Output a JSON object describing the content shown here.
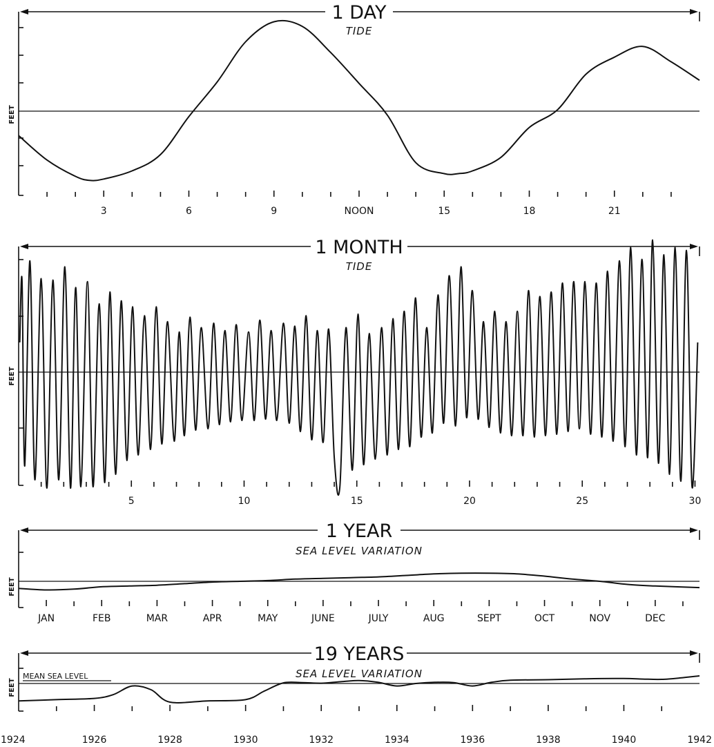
{
  "chart_data": [
    {
      "type": "line",
      "title": "1 DAY",
      "subtitle": "TIDE",
      "ylabel": "FEET",
      "xlim": [
        0,
        24
      ],
      "ylim": [
        -3,
        3
      ],
      "xtick_labels": [
        {
          "x": 3,
          "label": "3"
        },
        {
          "x": 6,
          "label": "6"
        },
        {
          "x": 9,
          "label": "9"
        },
        {
          "x": 12,
          "label": "NOON"
        },
        {
          "x": 15,
          "label": "15"
        },
        {
          "x": 18,
          "label": "18"
        },
        {
          "x": 21,
          "label": "21"
        }
      ],
      "series": [
        {
          "x": [
            0,
            1,
            2,
            2.5,
            3,
            4,
            5,
            6,
            7,
            8,
            9,
            10,
            11,
            12,
            13,
            14,
            15,
            15.5,
            16,
            17,
            18,
            19,
            20,
            21,
            22,
            23,
            24
          ],
          "values": [
            -0.9,
            -1.8,
            -2.4,
            -2.55,
            -2.5,
            -2.2,
            -1.6,
            -0.2,
            0.95,
            2.25,
            2.9,
            2.75,
            1.9,
            0.9,
            -0.15,
            -1.9,
            -2.3,
            -2.3,
            -2.2,
            -1.7,
            -0.6,
            0.05,
            1.2,
            1.75,
            2.1,
            1.6,
            1.0
          ]
        }
      ]
    },
    {
      "type": "line",
      "title": "1 MONTH",
      "subtitle": "TIDE",
      "ylabel": "FEET",
      "xlim": [
        0,
        30.2
      ],
      "ylim": [
        -4,
        4
      ],
      "xtick_labels": [
        {
          "x": 5,
          "label": "5"
        },
        {
          "x": 10,
          "label": "10"
        },
        {
          "x": 15,
          "label": "15"
        },
        {
          "x": 20,
          "label": "20"
        },
        {
          "x": 25,
          "label": "25"
        },
        {
          "x": 30,
          "label": "30"
        }
      ],
      "series": [
        {
          "x": [
            0.05,
            0.15,
            0.27,
            0.5,
            0.72,
            1.0,
            1.25,
            1.52,
            1.78,
            2.05,
            2.3,
            2.53,
            2.76,
            3.05,
            3.3,
            3.57,
            3.82,
            4.05,
            4.3,
            4.55,
            4.8,
            5.05,
            5.3,
            5.58,
            5.85,
            6.1,
            6.35,
            6.6,
            6.9,
            7.12,
            7.35,
            7.6,
            7.85,
            8.1,
            8.4,
            8.65,
            8.9,
            9.15,
            9.4,
            9.65,
            9.9,
            10.2,
            10.45,
            10.7,
            10.95,
            11.2,
            11.45,
            11.75,
            12.0,
            12.25,
            12.5,
            12.75,
            13.0,
            13.25,
            13.5,
            13.75,
            14.0,
            14.25,
            14.52,
            14.8,
            15.05,
            15.3,
            15.55,
            15.82,
            16.1,
            16.35,
            16.6,
            16.85,
            17.1,
            17.35,
            17.6,
            17.85,
            18.1,
            18.35,
            18.6,
            18.85,
            19.1,
            19.38,
            19.62,
            19.87,
            20.12,
            20.38,
            20.62,
            20.87,
            21.12,
            21.37,
            21.62,
            21.87,
            22.12,
            22.37,
            22.62,
            22.87,
            23.12,
            23.37,
            23.62,
            23.87,
            24.12,
            24.37,
            24.62,
            24.87,
            25.12,
            25.37,
            25.62,
            25.87,
            26.12,
            26.37,
            26.65,
            26.9,
            27.15,
            27.4,
            27.65,
            27.9,
            28.12,
            28.38,
            28.62,
            28.87,
            29.12,
            29.37,
            29.62,
            29.87,
            30.12
          ],
          "values": [
            1.0,
            3.1,
            -3.4,
            3.75,
            -3.9,
            3.15,
            -4.2,
            3.1,
            -3.9,
            3.55,
            -4.2,
            2.85,
            -4.15,
            3.05,
            -4.15,
            2.3,
            -4.0,
            2.7,
            -3.7,
            2.4,
            -3.2,
            2.2,
            -3.0,
            1.9,
            -2.8,
            2.2,
            -2.6,
            1.7,
            -2.5,
            1.35,
            -2.3,
            1.85,
            -2.1,
            1.5,
            -2.05,
            1.65,
            -1.9,
            1.4,
            -1.8,
            1.6,
            -1.75,
            1.35,
            -1.75,
            1.75,
            -1.7,
            1.4,
            -1.75,
            1.65,
            -1.85,
            1.55,
            -2.15,
            1.9,
            -2.45,
            1.4,
            -2.55,
            1.45,
            -3.1,
            -4.15,
            1.5,
            -3.55,
            1.95,
            -3.35,
            1.3,
            -3.15,
            1.5,
            -3.0,
            1.8,
            -2.8,
            2.05,
            -2.7,
            2.5,
            -2.35,
            1.5,
            -2.2,
            2.6,
            -1.85,
            3.25,
            -1.95,
            3.55,
            -1.65,
            2.75,
            -1.7,
            1.7,
            -2.0,
            2.05,
            -2.2,
            1.7,
            -2.3,
            2.05,
            -2.3,
            2.75,
            -2.35,
            2.55,
            -2.3,
            2.7,
            -2.25,
            3.0,
            -2.15,
            3.05,
            -2.05,
            3.05,
            -2.25,
            3.0,
            -2.35,
            3.4,
            -2.5,
            3.75,
            -2.7,
            4.2,
            -3.0,
            3.8,
            -3.1,
            4.45,
            -3.3,
            3.95,
            -3.7,
            4.2,
            -3.95,
            4.1,
            -4.15,
            1.0
          ]
        }
      ]
    },
    {
      "type": "line",
      "title": "1 YEAR",
      "subtitle": "SEA LEVEL VARIATION",
      "ylabel": "FEET",
      "xlim": [
        0,
        12.3
      ],
      "ylim": [
        -1.5,
        3
      ],
      "xtick_labels": [
        {
          "x": 0.5,
          "label": "JAN"
        },
        {
          "x": 1.5,
          "label": "FEB"
        },
        {
          "x": 2.5,
          "label": "MAR"
        },
        {
          "x": 3.5,
          "label": "APR"
        },
        {
          "x": 4.5,
          "label": "MAY"
        },
        {
          "x": 5.5,
          "label": "JUNE"
        },
        {
          "x": 6.5,
          "label": "JULY"
        },
        {
          "x": 7.5,
          "label": "AUG"
        },
        {
          "x": 8.5,
          "label": "SEPT"
        },
        {
          "x": 9.5,
          "label": "OCT"
        },
        {
          "x": 10.5,
          "label": "NOV"
        },
        {
          "x": 11.5,
          "label": "DEC"
        }
      ],
      "series": [
        {
          "x": [
            0,
            0.5,
            1,
            1.5,
            2,
            2.5,
            3,
            3.5,
            4,
            4.5,
            5,
            5.5,
            6,
            6.5,
            7,
            7.5,
            8,
            8.5,
            9,
            9.5,
            10,
            10.5,
            11,
            11.5,
            12.3
          ],
          "values": [
            -0.45,
            -0.55,
            -0.5,
            -0.35,
            -0.3,
            -0.25,
            -0.15,
            -0.05,
            0.0,
            0.05,
            0.15,
            0.2,
            0.25,
            0.3,
            0.4,
            0.5,
            0.55,
            0.55,
            0.5,
            0.35,
            0.15,
            0.0,
            -0.2,
            -0.3,
            -0.4
          ]
        }
      ]
    },
    {
      "type": "line",
      "title": "19 YEARS",
      "subtitle": "SEA LEVEL VARIATION",
      "ylabel": "FEET",
      "annotation": "MEAN SEA LEVEL",
      "xlim": [
        1924,
        1942
      ],
      "ylim": [
        -1,
        4
      ],
      "xtick_labels": [
        {
          "x": 1924,
          "label": "1924"
        },
        {
          "x": 1926,
          "label": "1926"
        },
        {
          "x": 1928,
          "label": "1928"
        },
        {
          "x": 1930,
          "label": "1930"
        },
        {
          "x": 1932,
          "label": "1932"
        },
        {
          "x": 1934,
          "label": "1934"
        },
        {
          "x": 1936,
          "label": "1936"
        },
        {
          "x": 1938,
          "label": "1938"
        },
        {
          "x": 1940,
          "label": "1940"
        },
        {
          "x": 1942,
          "label": "1942"
        }
      ],
      "series": [
        {
          "x": [
            1924,
            1925,
            1926,
            1926.5,
            1927,
            1927.5,
            1928,
            1929,
            1930,
            1930.5,
            1931,
            1931.5,
            1932,
            1932.5,
            1933,
            1933.5,
            1934,
            1934.5,
            1935,
            1935.5,
            1936,
            1936.5,
            1937,
            1938,
            1939,
            1940,
            1940.5,
            1941,
            1941.5,
            1942
          ],
          "values": [
            -0.7,
            -0.65,
            -0.6,
            -0.45,
            -0.1,
            -0.25,
            -0.75,
            -0.7,
            -0.65,
            -0.3,
            0.1,
            0.15,
            0.05,
            0.3,
            0.5,
            0.2,
            -0.1,
            0.0,
            0.2,
            0.15,
            -0.1,
            0.2,
            0.55,
            0.65,
            0.8,
            0.85,
            0.75,
            0.7,
            0.95,
            1.3
          ]
        }
      ]
    }
  ]
}
